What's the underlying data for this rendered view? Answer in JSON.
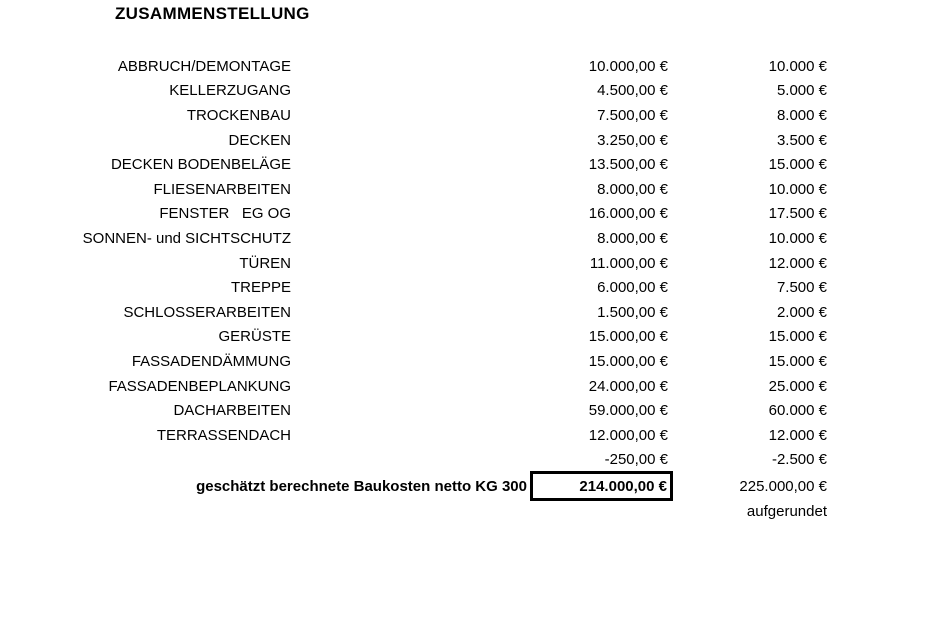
{
  "title": "ZUSAMMENSTELLUNG",
  "currency": "EUR",
  "rows": [
    {
      "label": "ABBRUCH/DEMONTAGE",
      "exact": "10.000,00 €",
      "rounded": "10.000 €"
    },
    {
      "label": "KELLERZUGANG",
      "exact": "4.500,00 €",
      "rounded": "5.000 €"
    },
    {
      "label": "TROCKENBAU",
      "exact": "7.500,00 €",
      "rounded": "8.000 €"
    },
    {
      "label": "DECKEN",
      "exact": "3.250,00 €",
      "rounded": "3.500 €"
    },
    {
      "label": "DECKEN BODENBELÄGE",
      "exact": "13.500,00 €",
      "rounded": "15.000 €"
    },
    {
      "label": "FLIESENARBEITEN",
      "exact": "8.000,00 €",
      "rounded": "10.000 €"
    },
    {
      "label": "FENSTER   EG OG",
      "exact": "16.000,00 €",
      "rounded": "17.500 €"
    },
    {
      "label": "SONNEN- und SICHTSCHUTZ",
      "exact": "8.000,00 €",
      "rounded": "10.000 €"
    },
    {
      "label": "TÜREN",
      "exact": "11.000,00 €",
      "rounded": "12.000 €"
    },
    {
      "label": "TREPPE",
      "exact": "6.000,00 €",
      "rounded": "7.500 €"
    },
    {
      "label": "SCHLOSSERARBEITEN",
      "exact": "1.500,00 €",
      "rounded": "2.000 €"
    },
    {
      "label": "GERÜSTE",
      "exact": "15.000,00 €",
      "rounded": "15.000 €"
    },
    {
      "label": "FASSADENDÄMMUNG",
      "exact": "15.000,00 €",
      "rounded": "15.000 €"
    },
    {
      "label": "FASSADENBEPLANKUNG",
      "exact": "24.000,00 €",
      "rounded": "25.000 €"
    },
    {
      "label": "DACHARBEITEN",
      "exact": "59.000,00 €",
      "rounded": "60.000 €"
    },
    {
      "label": "TERRASSENDACH",
      "exact": "12.000,00 €",
      "rounded": "12.000 €"
    },
    {
      "label": "",
      "exact": "-250,00 €",
      "rounded": "-2.500 €"
    }
  ],
  "total": {
    "label": "geschätzt berechnete Baukosten netto KG 300",
    "exact": "214.000,00 €",
    "rounded": "225.000,00 €",
    "note": "aufgerundet"
  }
}
